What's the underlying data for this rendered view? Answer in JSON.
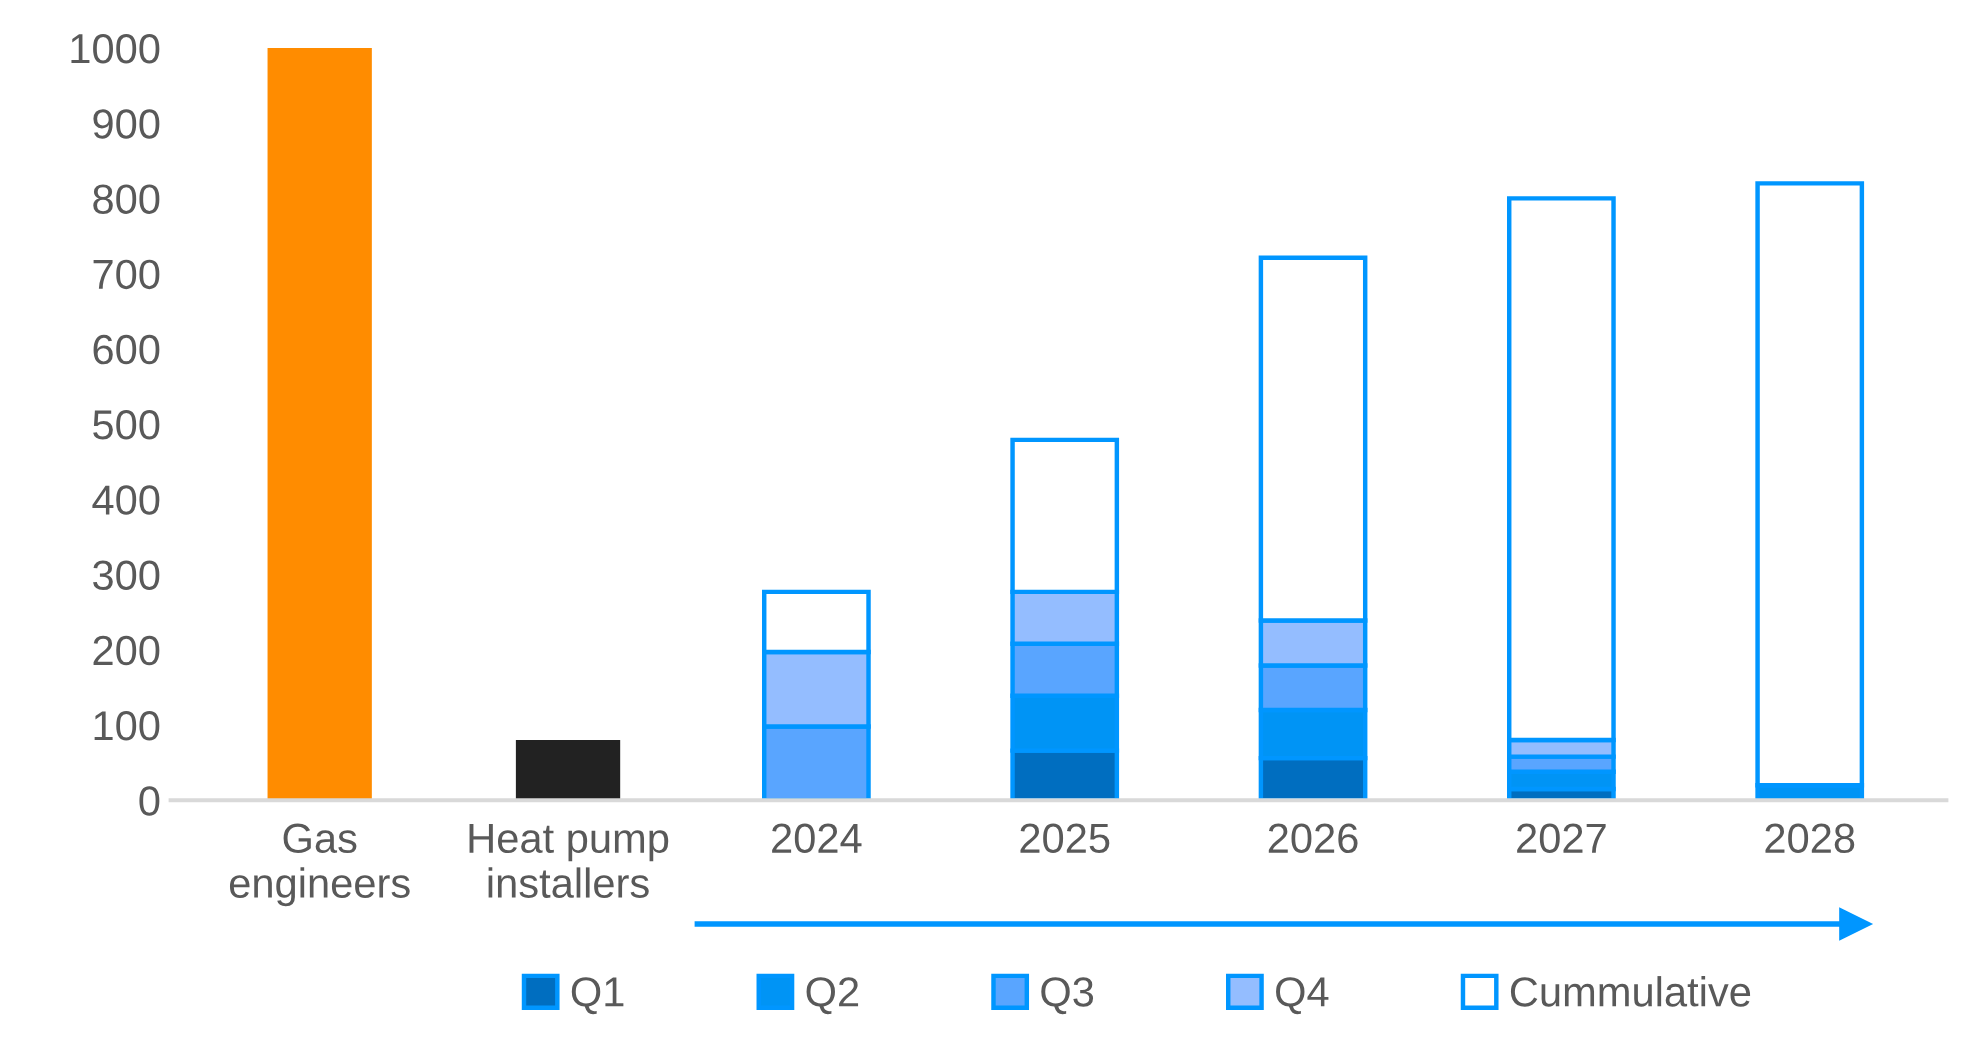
{
  "chart_data": {
    "type": "bar",
    "stacked": true,
    "categories": [
      "Gas\nengineers",
      "Heat pump\ninstallers",
      "2024",
      "2025",
      "2026",
      "2027",
      "2028"
    ],
    "series": [
      {
        "colors": [
          "#ff8c00",
          "#222222",
          null,
          null,
          null,
          null,
          null
        ],
        "values": [
          1000,
          80,
          null,
          null,
          null,
          null,
          null
        ]
      },
      {
        "name": "Q1",
        "color": "#006ec0",
        "values": [
          null,
          null,
          0,
          66,
          56,
          15,
          0
        ]
      },
      {
        "name": "Q2",
        "color": "#0094f5",
        "values": [
          null,
          null,
          0,
          73,
          64,
          23,
          20
        ]
      },
      {
        "name": "Q3",
        "color": "#59a5ff",
        "values": [
          null,
          null,
          98,
          69,
          59,
          20,
          0
        ]
      },
      {
        "name": "Q4",
        "color": "#94bdff",
        "values": [
          null,
          null,
          99,
          69,
          60,
          22,
          0
        ]
      },
      {
        "name": "Cummulative",
        "color": "#ffffff",
        "values": [
          null,
          null,
          80,
          202,
          482,
          720,
          800
        ]
      }
    ],
    "ylim": [
      0,
      1000
    ],
    "yticks": [
      0,
      100,
      200,
      300,
      400,
      500,
      600,
      700,
      800,
      900,
      1000
    ],
    "grid": false,
    "legend": "bottom"
  }
}
